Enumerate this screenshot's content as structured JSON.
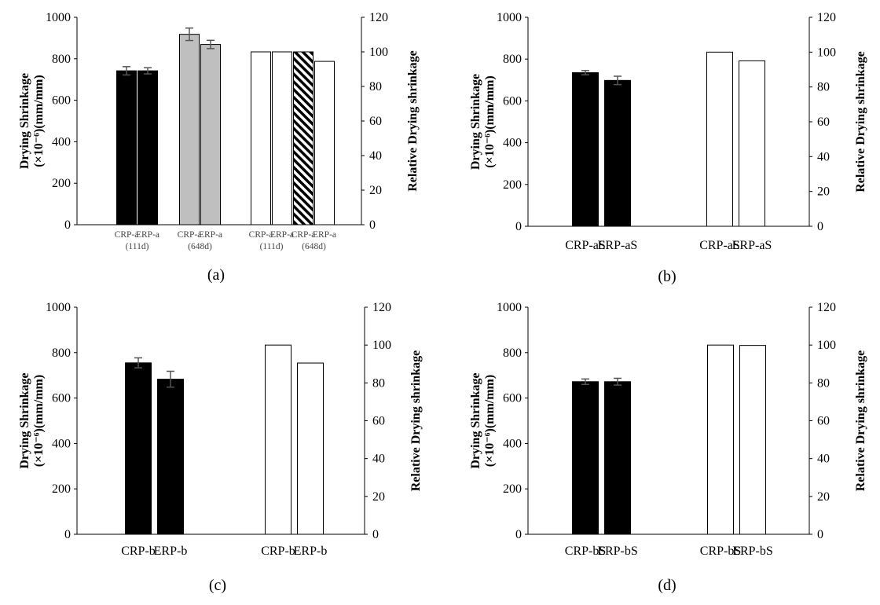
{
  "chart_data": [
    {
      "panel": "a",
      "caption": "(a)",
      "type": "bar",
      "ylabel_left_line1": "Drying Shrinkage",
      "ylabel_left_line2": "(×10⁻⁶)(mm/mm)",
      "ylabel_right": "Relative Drying shrinkage",
      "ylim_left": [
        0,
        1000
      ],
      "ylim_right": [
        0,
        120
      ],
      "yticks_left": [
        "0",
        "200",
        "400",
        "600",
        "800",
        "1000"
      ],
      "yticks_right": [
        "0",
        "20",
        "40",
        "60",
        "80",
        "100",
        "120"
      ],
      "bars_left": [
        {
          "label": "CRP-a",
          "sublabel": "(111d)",
          "value": 742,
          "error": 20,
          "fill": "#000000"
        },
        {
          "label": "ERP-a",
          "sublabel": "",
          "value": 742,
          "error": 15,
          "fill": "#000000"
        },
        {
          "label": "CRP-a",
          "sublabel": "(648d)",
          "value": 918,
          "error": 30,
          "fill": "#bfbfbf"
        },
        {
          "label": "ERP-a",
          "sublabel": "",
          "value": 869,
          "error": 20,
          "fill": "#bfbfbf"
        }
      ],
      "bars_right": [
        {
          "label": "CRP-a",
          "sublabel": "(111d)",
          "value": 100,
          "fill": "#ffffff"
        },
        {
          "label": "ERP-a",
          "sublabel": "",
          "value": 100,
          "fill": "#ffffff"
        },
        {
          "label": "CRP-a",
          "sublabel": "(648d)",
          "value": 100,
          "fill": "hatch"
        },
        {
          "label": "ERP-a",
          "sublabel": "",
          "value": 94.5,
          "fill": "#ffffff"
        }
      ]
    },
    {
      "panel": "b",
      "caption": "(b)",
      "type": "bar",
      "ylabel_left_line1": "Drying Shrinkage",
      "ylabel_left_line2": "(×10⁻⁶)(mm/mm)",
      "ylabel_right": "Relative Drying shrinkage",
      "ylim_left": [
        0,
        1000
      ],
      "ylim_right": [
        0,
        120
      ],
      "yticks_left": [
        "0",
        "200",
        "400",
        "600",
        "800",
        "1000"
      ],
      "yticks_right": [
        "0",
        "20",
        "40",
        "60",
        "80",
        "100",
        "120"
      ],
      "bars_left": [
        {
          "label": "CRP-aS",
          "value": 735,
          "error": 10,
          "fill": "#000000"
        },
        {
          "label": "ERP-aS",
          "value": 698,
          "error": 20,
          "fill": "#000000"
        }
      ],
      "bars_right": [
        {
          "label": "CRP-aS",
          "value": 100,
          "fill": "#ffffff"
        },
        {
          "label": "ERP-aS",
          "value": 95,
          "fill": "#ffffff"
        }
      ]
    },
    {
      "panel": "c",
      "caption": "(c)",
      "type": "bar",
      "ylabel_left_line1": "Drying Shrinkage",
      "ylabel_left_line2": "(×10⁻⁶)(mm/mm)",
      "ylabel_right": "Relative Drying shrinkage",
      "ylim_left": [
        0,
        1000
      ],
      "ylim_right": [
        0,
        120
      ],
      "yticks_left": [
        "0",
        "200",
        "400",
        "600",
        "800",
        "1000"
      ],
      "yticks_right": [
        "0",
        "20",
        "40",
        "60",
        "80",
        "100",
        "120"
      ],
      "bars_left": [
        {
          "label": "CRP-b",
          "value": 755,
          "error": 22,
          "fill": "#000000"
        },
        {
          "label": "ERP-b",
          "value": 683,
          "error": 35,
          "fill": "#000000"
        }
      ],
      "bars_right": [
        {
          "label": "CRP-b",
          "value": 100,
          "fill": "#ffffff"
        },
        {
          "label": "ERP-b",
          "value": 90.5,
          "fill": "#ffffff"
        }
      ]
    },
    {
      "panel": "d",
      "caption": "(d)",
      "type": "bar",
      "ylabel_left_line1": "Drying Shrinkage",
      "ylabel_left_line2": "(×10⁻⁶)(mm/mm)",
      "ylabel_right": "Relative Drying shrinkage",
      "ylim_left": [
        0,
        1000
      ],
      "ylim_right": [
        0,
        120
      ],
      "yticks_left": [
        "0",
        "200",
        "400",
        "600",
        "800",
        "1000"
      ],
      "yticks_right": [
        "0",
        "20",
        "40",
        "60",
        "80",
        "100",
        "120"
      ],
      "bars_left": [
        {
          "label": "CRP-bS",
          "value": 672,
          "error": 12,
          "fill": "#000000"
        },
        {
          "label": "ERP-bS",
          "value": 672,
          "error": 15,
          "fill": "#000000"
        }
      ],
      "bars_right": [
        {
          "label": "CRP-bS",
          "value": 100,
          "fill": "#ffffff"
        },
        {
          "label": "ERP-bS",
          "value": 99.8,
          "fill": "#ffffff"
        }
      ]
    }
  ]
}
